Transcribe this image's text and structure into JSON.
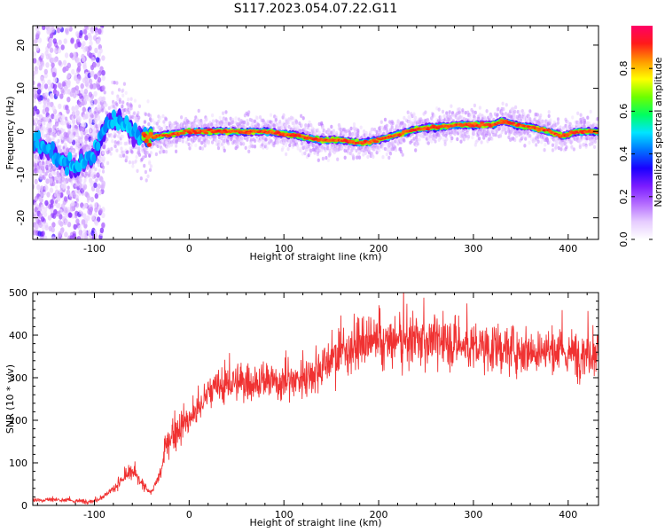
{
  "title": "S117.2023.054.07.22.G11",
  "chart_data": [
    {
      "type": "heatmap",
      "xlabel": "Height of straight line (km)",
      "ylabel": "Frequency (Hz)",
      "xlim": [
        -165,
        432
      ],
      "ylim": [
        -25,
        24.5
      ],
      "xticks": [
        -100,
        0,
        100,
        200,
        300,
        400
      ],
      "yticks": [
        -20,
        -10,
        0,
        10,
        20
      ],
      "colorbar": {
        "label": "Normalized spectral amplitude",
        "range": [
          0,
          1
        ],
        "ticks": [
          0.0,
          0.2,
          0.4,
          0.6,
          0.8
        ],
        "colors": [
          "#ffffff",
          "#e6ccff",
          "#b46bff",
          "#7a1cff",
          "#1a00ff",
          "#0072ff",
          "#00e5ff",
          "#00ff60",
          "#6eff00",
          "#ffff00",
          "#ff9900",
          "#ff1a1a",
          "#ff0066"
        ]
      },
      "ridge": {
        "x": [
          -165,
          -150,
          -140,
          -130,
          -120,
          -110,
          -100,
          -92,
          -85,
          -78,
          -70,
          -62,
          -55,
          -50,
          -45,
          -30,
          0,
          20,
          40,
          60,
          80,
          100,
          115,
          125,
          140,
          160,
          175,
          190,
          200,
          215,
          240,
          260,
          280,
          300,
          320,
          330,
          345,
          360,
          380,
          395,
          410,
          432
        ],
        "y": [
          -2,
          -4,
          -6,
          -7.5,
          -8,
          -7,
          -5,
          -1,
          1.5,
          3,
          2,
          0.5,
          -0.5,
          -1,
          -1.5,
          -1,
          0,
          0,
          0,
          0,
          0,
          -0.5,
          -1,
          -1.5,
          -2,
          -2,
          -2.5,
          -2.5,
          -2,
          -1,
          0.5,
          1,
          1.5,
          1.5,
          1.5,
          2.5,
          1.5,
          1,
          0,
          -1,
          0,
          0
        ]
      }
    },
    {
      "type": "line",
      "xlabel": "Height of straight line (km)",
      "ylabel": "SNR (10 * v/v)",
      "xlim": [
        -165,
        432
      ],
      "ylim": [
        0,
        500
      ],
      "xticks": [
        -100,
        0,
        100,
        200,
        300,
        400
      ],
      "yticks": [
        0,
        100,
        200,
        300,
        400,
        500
      ],
      "color": "#f03232",
      "trend": {
        "x": [
          -165,
          -140,
          -120,
          -100,
          -90,
          -80,
          -70,
          -60,
          -50,
          -40,
          -30,
          -25,
          -20,
          -10,
          0,
          10,
          20,
          40,
          60,
          80,
          100,
          120,
          140,
          160,
          175,
          200,
          230,
          250,
          270,
          300,
          330,
          360,
          380,
          400,
          420,
          432
        ],
        "y": [
          12,
          14,
          10,
          10,
          22,
          40,
          60,
          80,
          50,
          30,
          75,
          130,
          160,
          185,
          200,
          225,
          265,
          285,
          290,
          290,
          290,
          300,
          325,
          360,
          375,
          380,
          385,
          390,
          385,
          370,
          368,
          365,
          360,
          355,
          360,
          365
        ]
      }
    }
  ]
}
